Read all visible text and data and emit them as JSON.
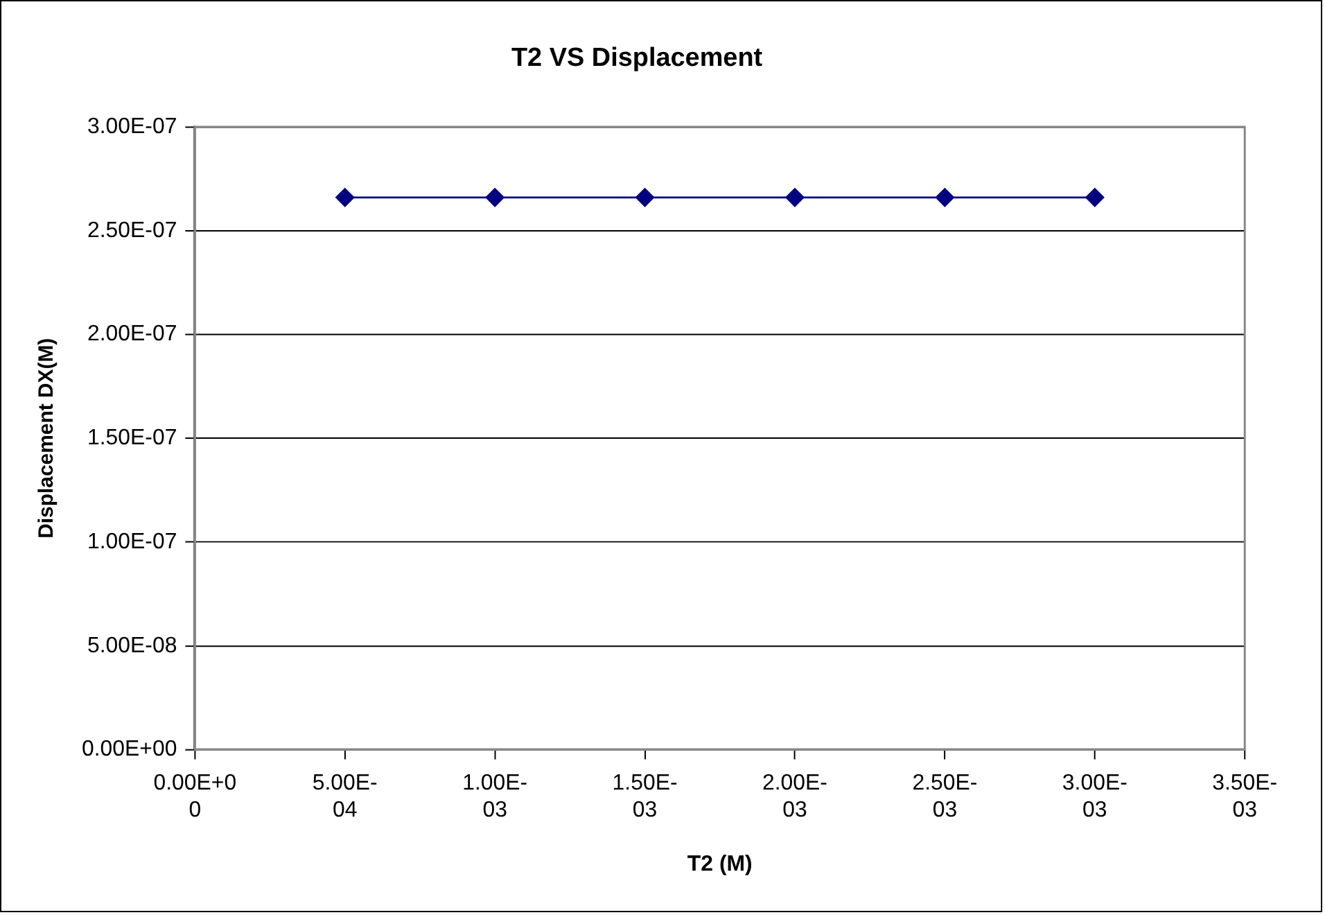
{
  "chart_data": {
    "type": "line",
    "title": "T2 VS Displacement",
    "xlabel": "T2 (M)",
    "ylabel": "Displacement DX(M)",
    "x": [
      0.0005,
      0.001,
      0.0015,
      0.002,
      0.0025,
      0.003
    ],
    "series": [
      {
        "color": "#000080",
        "values": [
          2.66e-07,
          2.66e-07,
          2.66e-07,
          2.66e-07,
          2.66e-07,
          2.66e-07
        ]
      }
    ],
    "xlim": [
      0,
      0.0035
    ],
    "xticks": [
      {
        "value": 0,
        "label": "0.00E+00"
      },
      {
        "value": 0.0005,
        "label": "5.00E-04"
      },
      {
        "value": 0.001,
        "label": "1.00E-03"
      },
      {
        "value": 0.0015,
        "label": "1.50E-03"
      },
      {
        "value": 0.002,
        "label": "2.00E-03"
      },
      {
        "value": 0.0025,
        "label": "2.50E-03"
      },
      {
        "value": 0.003,
        "label": "3.00E-03"
      },
      {
        "value": 0.0035,
        "label": "3.50E-03"
      }
    ],
    "ylim": [
      0,
      3e-07
    ],
    "yticks": [
      {
        "value": 0,
        "label": "0.00E+00"
      },
      {
        "value": 5e-08,
        "label": "5.00E-08"
      },
      {
        "value": 1e-07,
        "label": "1.00E-07"
      },
      {
        "value": 1.5e-07,
        "label": "1.50E-07"
      },
      {
        "value": 2e-07,
        "label": "2.00E-07"
      },
      {
        "value": 2.5e-07,
        "label": "2.50E-07"
      },
      {
        "value": 3e-07,
        "label": "3.00E-07"
      }
    ],
    "grid": "y",
    "legend": false,
    "marker": "diamond",
    "line_style": "solid"
  }
}
